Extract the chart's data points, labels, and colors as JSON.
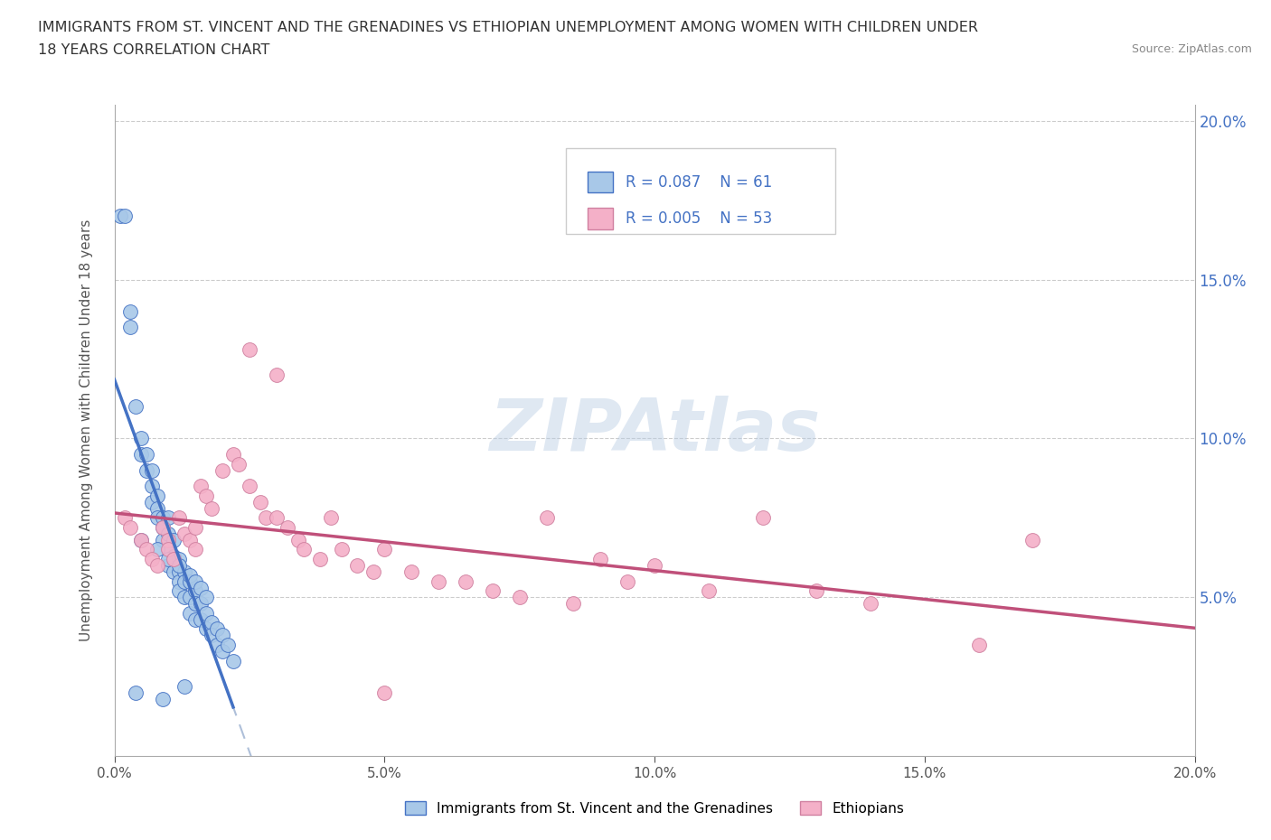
{
  "title_line1": "IMMIGRANTS FROM ST. VINCENT AND THE GRENADINES VS ETHIOPIAN UNEMPLOYMENT AMONG WOMEN WITH CHILDREN UNDER",
  "title_line2": "18 YEARS CORRELATION CHART",
  "source_text": "Source: ZipAtlas.com",
  "ylabel": "Unemployment Among Women with Children Under 18 years",
  "legend_label1": "Immigrants from St. Vincent and the Grenadines",
  "legend_label2": "Ethiopians",
  "r1": 0.087,
  "n1": 61,
  "r2": 0.005,
  "n2": 53,
  "color1": "#a8c8e8",
  "color2": "#f4b0c8",
  "trend1_color": "#4472c4",
  "trend2_color": "#c0507a",
  "dashed_color": "#9ab0d0",
  "watermark": "ZIPAtlas",
  "xlim": [
    0.0,
    0.2
  ],
  "ylim": [
    0.0,
    0.205
  ],
  "xticks": [
    0.0,
    0.05,
    0.1,
    0.15,
    0.2
  ],
  "yticks": [
    0.05,
    0.1,
    0.15,
    0.2
  ],
  "xtick_labels": [
    "0.0%",
    "5.0%",
    "10.0%",
    "15.0%",
    "20.0%"
  ],
  "ytick_labels": [
    "5.0%",
    "10.0%",
    "15.0%",
    "20.0%"
  ],
  "blue_x": [
    0.001,
    0.002,
    0.003,
    0.003,
    0.004,
    0.005,
    0.005,
    0.006,
    0.006,
    0.007,
    0.007,
    0.007,
    0.008,
    0.008,
    0.008,
    0.009,
    0.009,
    0.009,
    0.01,
    0.01,
    0.01,
    0.01,
    0.011,
    0.011,
    0.011,
    0.012,
    0.012,
    0.012,
    0.012,
    0.013,
    0.013,
    0.013,
    0.014,
    0.014,
    0.014,
    0.015,
    0.015,
    0.015,
    0.016,
    0.016,
    0.017,
    0.017,
    0.018,
    0.018,
    0.019,
    0.019,
    0.02,
    0.02,
    0.021,
    0.022,
    0.005,
    0.008,
    0.01,
    0.012,
    0.014,
    0.015,
    0.016,
    0.017,
    0.004,
    0.009,
    0.013
  ],
  "blue_y": [
    0.17,
    0.17,
    0.14,
    0.135,
    0.11,
    0.1,
    0.095,
    0.095,
    0.09,
    0.09,
    0.085,
    0.08,
    0.082,
    0.078,
    0.075,
    0.075,
    0.072,
    0.068,
    0.075,
    0.07,
    0.065,
    0.06,
    0.068,
    0.063,
    0.058,
    0.062,
    0.058,
    0.055,
    0.052,
    0.058,
    0.055,
    0.05,
    0.055,
    0.05,
    0.045,
    0.052,
    0.048,
    0.043,
    0.048,
    0.043,
    0.045,
    0.04,
    0.042,
    0.038,
    0.04,
    0.035,
    0.038,
    0.033,
    0.035,
    0.03,
    0.068,
    0.065,
    0.062,
    0.06,
    0.057,
    0.055,
    0.053,
    0.05,
    0.02,
    0.018,
    0.022
  ],
  "pink_x": [
    0.002,
    0.003,
    0.005,
    0.006,
    0.007,
    0.008,
    0.009,
    0.01,
    0.01,
    0.011,
    0.012,
    0.013,
    0.014,
    0.015,
    0.015,
    0.016,
    0.017,
    0.018,
    0.02,
    0.022,
    0.023,
    0.025,
    0.027,
    0.028,
    0.03,
    0.032,
    0.034,
    0.035,
    0.038,
    0.04,
    0.042,
    0.045,
    0.048,
    0.05,
    0.055,
    0.06,
    0.065,
    0.07,
    0.075,
    0.08,
    0.085,
    0.09,
    0.095,
    0.1,
    0.11,
    0.12,
    0.13,
    0.14,
    0.16,
    0.17,
    0.025,
    0.03,
    0.05
  ],
  "pink_y": [
    0.075,
    0.072,
    0.068,
    0.065,
    0.062,
    0.06,
    0.072,
    0.068,
    0.065,
    0.062,
    0.075,
    0.07,
    0.068,
    0.072,
    0.065,
    0.085,
    0.082,
    0.078,
    0.09,
    0.095,
    0.092,
    0.085,
    0.08,
    0.075,
    0.075,
    0.072,
    0.068,
    0.065,
    0.062,
    0.075,
    0.065,
    0.06,
    0.058,
    0.065,
    0.058,
    0.055,
    0.055,
    0.052,
    0.05,
    0.075,
    0.048,
    0.062,
    0.055,
    0.06,
    0.052,
    0.075,
    0.052,
    0.048,
    0.035,
    0.068,
    0.128,
    0.12,
    0.02
  ]
}
